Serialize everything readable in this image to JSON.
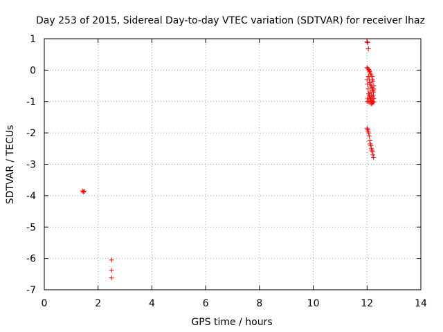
{
  "chart_data": {
    "type": "scatter",
    "title": "Day 253 of 2015, Sidereal Day-to-day VTEC variation (SDTVAR) for receiver lhaz",
    "xlabel": "GPS time / hours",
    "ylabel": "SDTVAR / TECUs",
    "xlim": [
      0,
      14
    ],
    "ylim": [
      -7,
      1
    ],
    "xticks": [
      "0",
      "2",
      "4",
      "6",
      "8",
      "10",
      "12",
      "14"
    ],
    "yticks": [
      "1",
      "0",
      "-1",
      "-2",
      "-3",
      "-4",
      "-5",
      "-6",
      "-7"
    ],
    "grid": true,
    "marker": "+",
    "color": "#ff0000",
    "series": [
      {
        "name": "SDTVAR",
        "points": [
          [
            1.42,
            -3.85
          ],
          [
            1.45,
            -3.88
          ],
          [
            1.48,
            -3.86
          ],
          [
            2.5,
            -6.05
          ],
          [
            2.5,
            -6.38
          ],
          [
            2.5,
            -6.62
          ],
          [
            12.0,
            0.9
          ],
          [
            12.02,
            0.88
          ],
          [
            12.05,
            0.68
          ],
          [
            12.0,
            0.08
          ],
          [
            12.03,
            0.05
          ],
          [
            12.06,
            0.02
          ],
          [
            12.08,
            -0.02
          ],
          [
            12.1,
            -0.05
          ],
          [
            12.12,
            -0.1
          ],
          [
            12.15,
            -0.15
          ],
          [
            12.18,
            -0.2
          ],
          [
            12.2,
            -0.3
          ],
          [
            12.22,
            -0.35
          ],
          [
            12.05,
            -0.2
          ],
          [
            12.08,
            -0.3
          ],
          [
            12.1,
            -0.4
          ],
          [
            12.12,
            -0.45
          ],
          [
            12.15,
            -0.5
          ],
          [
            12.18,
            -0.55
          ],
          [
            12.2,
            -0.6
          ],
          [
            12.22,
            -0.65
          ],
          [
            12.25,
            -0.5
          ],
          [
            12.24,
            -0.7
          ],
          [
            12.0,
            -0.3
          ],
          [
            12.02,
            -0.45
          ],
          [
            12.04,
            -0.6
          ],
          [
            12.06,
            -0.75
          ],
          [
            12.08,
            -0.8
          ],
          [
            12.1,
            -0.85
          ],
          [
            12.12,
            -0.9
          ],
          [
            12.14,
            -0.95
          ],
          [
            12.16,
            -1.0
          ],
          [
            12.18,
            -1.05
          ],
          [
            12.2,
            -0.95
          ],
          [
            12.22,
            -1.0
          ],
          [
            12.25,
            -0.9
          ],
          [
            12.02,
            -0.9
          ],
          [
            12.0,
            -1.0
          ],
          [
            12.05,
            -1.0
          ],
          [
            12.1,
            -1.02
          ],
          [
            12.15,
            -1.08
          ],
          [
            12.2,
            -1.05
          ],
          [
            12.25,
            -1.02
          ],
          [
            12.12,
            -0.7
          ],
          [
            12.16,
            -0.8
          ],
          [
            12.2,
            -0.85
          ],
          [
            12.23,
            -0.8
          ],
          [
            12.25,
            -0.6
          ],
          [
            12.0,
            -1.85
          ],
          [
            12.02,
            -1.9
          ],
          [
            12.04,
            -1.95
          ],
          [
            12.06,
            -2.0
          ],
          [
            12.08,
            -2.1
          ],
          [
            12.1,
            -2.25
          ],
          [
            12.12,
            -2.35
          ],
          [
            12.14,
            -2.4
          ],
          [
            12.16,
            -2.5
          ],
          [
            12.18,
            -2.55
          ],
          [
            12.2,
            -2.6
          ],
          [
            12.22,
            -2.7
          ],
          [
            12.24,
            -2.78
          ]
        ]
      }
    ]
  }
}
